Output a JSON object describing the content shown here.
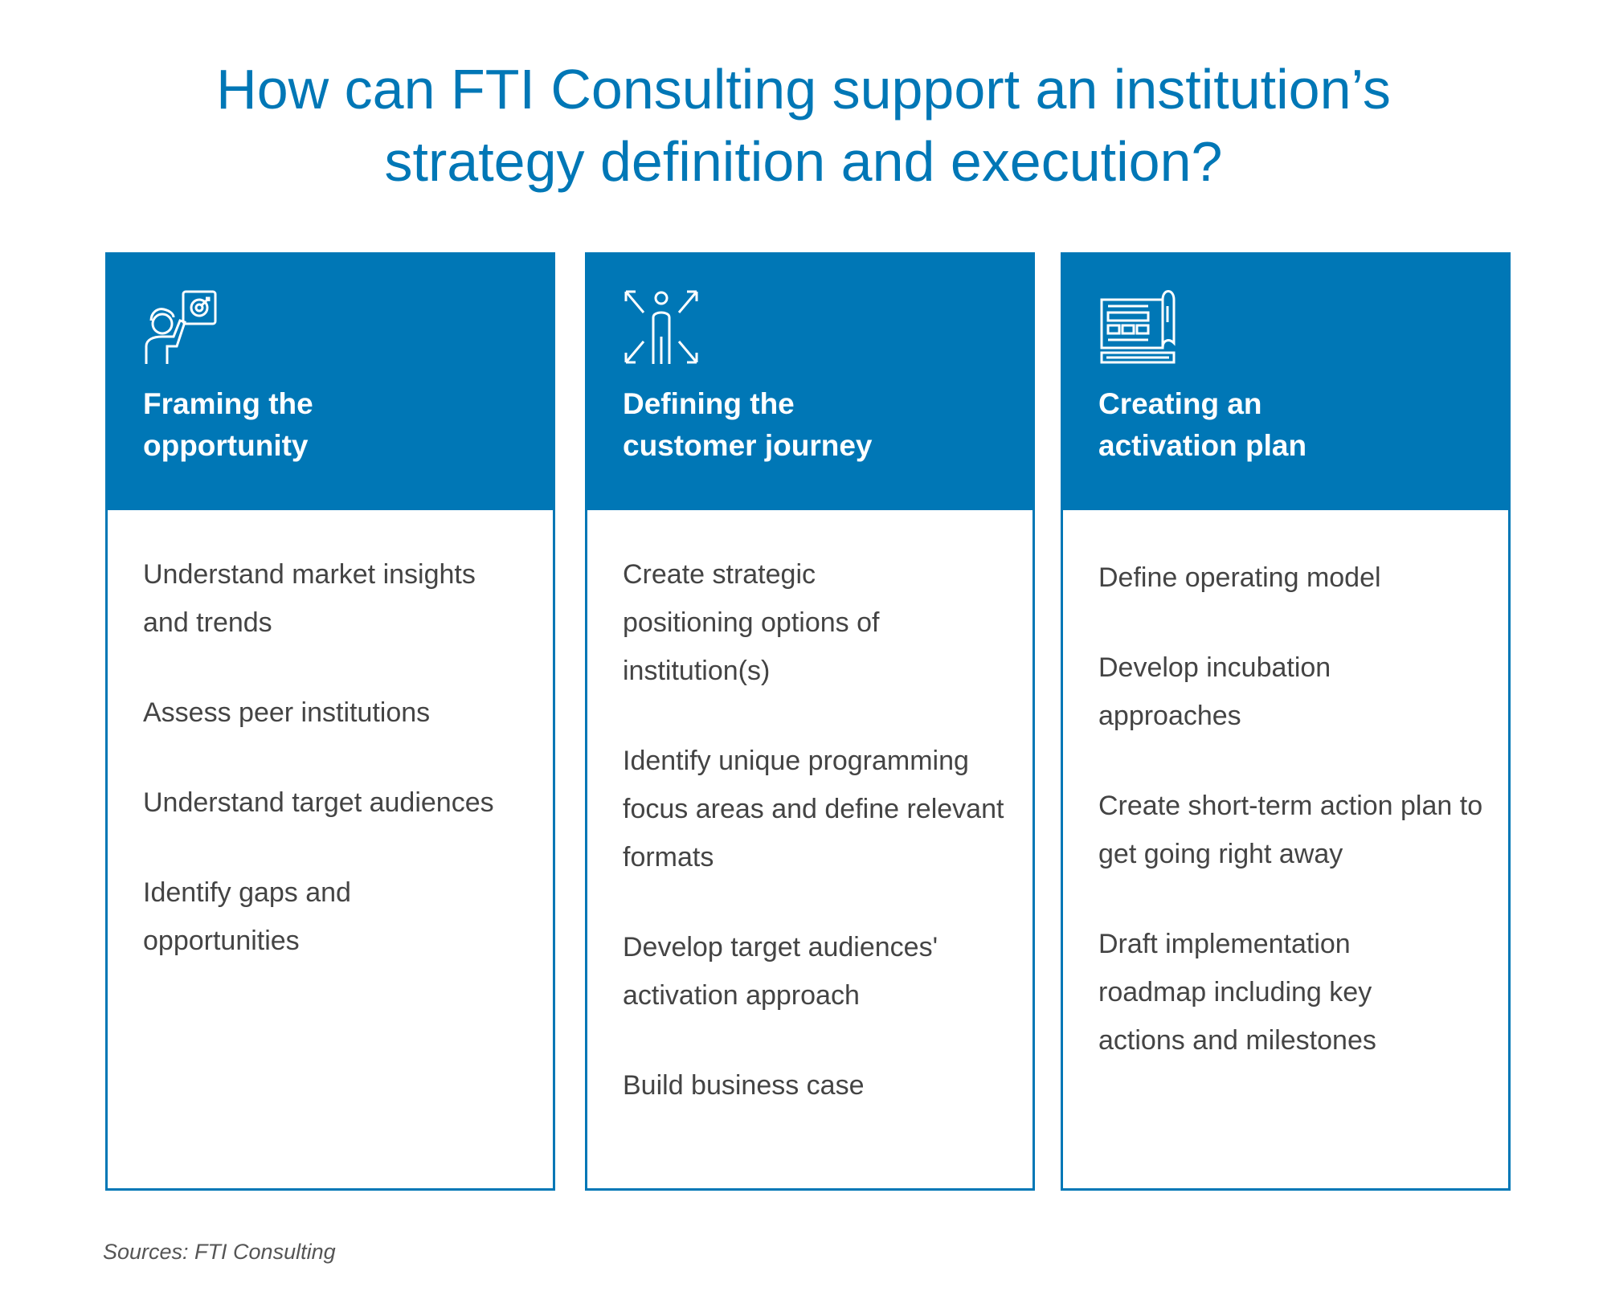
{
  "title": {
    "line1": "How can FTI Consulting support an institution’s",
    "line2": "strategy definition and execution?"
  },
  "accent_color": "#0077b6",
  "cards": [
    {
      "icon": "presenter-target-icon",
      "title_line1": "Framing the",
      "title_line2": "opportunity",
      "items": [
        "Understand market insights and trends",
        "Assess peer institutions",
        "Understand target audiences",
        "Identify gaps and opportunities"
      ]
    },
    {
      "icon": "person-arrows-icon",
      "title_line1": "Defining the",
      "title_line2": "customer journey",
      "items": [
        "Create strategic positioning options of institution(s)",
        "Identify unique programming focus areas and define relevant formats",
        "Develop target audiences' activation approach",
        "Build business case"
      ]
    },
    {
      "icon": "blueprint-plan-icon",
      "title_line1": "Creating an",
      "title_line2": "activation plan",
      "items": [
        "Define operating model",
        "Develop incubation approaches",
        "Create short-term action plan to get going right away",
        "Draft implementation roadmap including key actions and milestones"
      ]
    }
  ],
  "source": "Sources: FTI Consulting"
}
